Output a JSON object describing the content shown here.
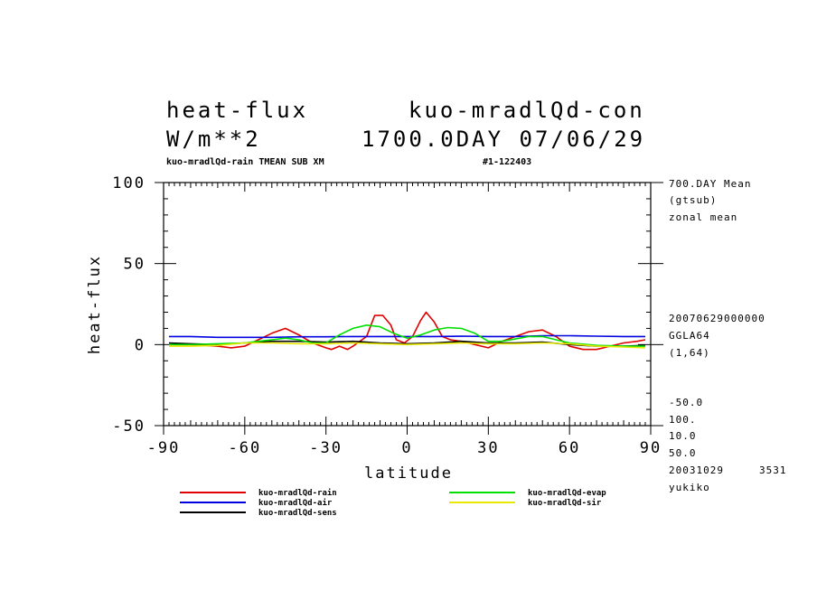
{
  "header": {
    "title_left": "heat-flux",
    "title_right": "kuo-mradlQd-con",
    "units": "W/m**2",
    "time_stamp": "1700.0DAY 07/06/29",
    "sub_left": "kuo-mradlQd-rain TMEAN SUB XM",
    "sub_right": "#1-122403"
  },
  "side_info": {
    "line1": "700.DAY Mean",
    "line2": "(gtsub)",
    "line3": "zonal mean",
    "line4": "20070629000000",
    "line5": "GGLA64",
    "line6": "(1,64)",
    "line7": "-50.0",
    "line8": "100.",
    "line9": "10.0",
    "line10": "50.0",
    "line11_date": "20031029",
    "line11_num": "3531",
    "line12": "yukiko"
  },
  "chart_data": {
    "type": "line",
    "title": "heat-flux",
    "xlabel": "latitude",
    "ylabel": "heat-flux",
    "xlim": [
      -90,
      90
    ],
    "ylim": [
      -50,
      100
    ],
    "xticks": [
      -90,
      -60,
      -30,
      0,
      30,
      60,
      90
    ],
    "yticks": [
      -50,
      0,
      50,
      100
    ],
    "xtick_labels": [
      "-90",
      "-60",
      "-30",
      "0",
      "30",
      "60",
      "90"
    ],
    "ytick_labels": [
      "-50",
      "0",
      "50",
      "100"
    ],
    "grid": false,
    "series": [
      {
        "name": "kuo-mradlQd-rain",
        "color": "#e00000",
        "x": [
          -88,
          -80,
          -70,
          -65,
          -60,
          -55,
          -50,
          -45,
          -40,
          -35,
          -30,
          -28,
          -25,
          -22,
          -20,
          -15,
          -12,
          -9,
          -6,
          -4,
          -1,
          2,
          5,
          7,
          10,
          13,
          16,
          20,
          25,
          30,
          35,
          40,
          45,
          50,
          55,
          60,
          65,
          70,
          75,
          80,
          85,
          88
        ],
        "y": [
          0,
          0,
          -1,
          -2,
          -1,
          3,
          7,
          10,
          6,
          1,
          -2,
          -3,
          -1,
          -3,
          -1,
          5,
          18,
          18,
          12,
          3,
          1,
          5,
          15,
          20,
          14,
          5,
          3,
          2,
          0,
          -2,
          2,
          5,
          8,
          9,
          5,
          -1,
          -3,
          -3,
          -1,
          1,
          2,
          3
        ]
      },
      {
        "name": "kuo-mradlQd-air",
        "color": "#0000e0",
        "x": [
          -88,
          -80,
          -70,
          -60,
          -50,
          -40,
          -30,
          -20,
          -10,
          0,
          10,
          20,
          30,
          40,
          50,
          60,
          70,
          80,
          88
        ],
        "y": [
          5,
          5,
          4.5,
          4.5,
          4.5,
          4.8,
          4.8,
          5,
          5,
          5,
          5,
          5.2,
          5,
          5,
          5.5,
          5.5,
          5.2,
          5,
          5
        ]
      },
      {
        "name": "kuo-mradlQd-sens",
        "color": "#000000",
        "x": [
          -88,
          -80,
          -70,
          -60,
          -50,
          -40,
          -30,
          -20,
          -10,
          0,
          10,
          20,
          30,
          40,
          50,
          60,
          70,
          80,
          88
        ],
        "y": [
          1,
          0.5,
          0,
          1,
          2,
          2,
          1.5,
          2,
          1,
          0.5,
          1,
          2,
          1,
          1,
          1.5,
          0,
          -1,
          -1,
          -0.5
        ]
      },
      {
        "name": "kuo-mradlQd-evap",
        "color": "#00e000",
        "x": [
          -88,
          -80,
          -70,
          -60,
          -55,
          -50,
          -45,
          -40,
          -35,
          -30,
          -25,
          -20,
          -15,
          -10,
          -5,
          0,
          5,
          10,
          15,
          20,
          25,
          30,
          35,
          40,
          45,
          50,
          55,
          60,
          70,
          80,
          88
        ],
        "y": [
          0,
          0,
          0.5,
          1,
          2,
          3,
          4,
          3,
          1,
          1,
          6,
          10,
          12,
          11,
          7,
          4,
          6,
          9,
          10.5,
          10,
          7,
          2,
          2,
          3.5,
          5,
          5,
          3,
          1,
          -0.5,
          -1,
          -1
        ]
      },
      {
        "name": "kuo-mradlQd-sir",
        "color": "#e8e800",
        "x": [
          -88,
          -80,
          -70,
          -60,
          -50,
          -40,
          -30,
          -20,
          -10,
          0,
          10,
          20,
          30,
          40,
          50,
          60,
          70,
          80,
          88
        ],
        "y": [
          -1,
          -1,
          -0.5,
          1,
          1,
          0.5,
          0.5,
          1,
          0.5,
          0,
          0.5,
          1,
          0.5,
          0.5,
          1,
          0.5,
          -1,
          -1.5,
          -2
        ]
      }
    ]
  },
  "legend": {
    "items": [
      {
        "label": "kuo-mradlQd-rain",
        "color": "#e00000"
      },
      {
        "label": "kuo-mradlQd-air",
        "color": "#0000e0"
      },
      {
        "label": "kuo-mradlQd-sens",
        "color": "#000000"
      },
      {
        "label": "kuo-mradlQd-evap",
        "color": "#00e000"
      },
      {
        "label": "kuo-mradlQd-sir",
        "color": "#e8e800"
      }
    ]
  }
}
